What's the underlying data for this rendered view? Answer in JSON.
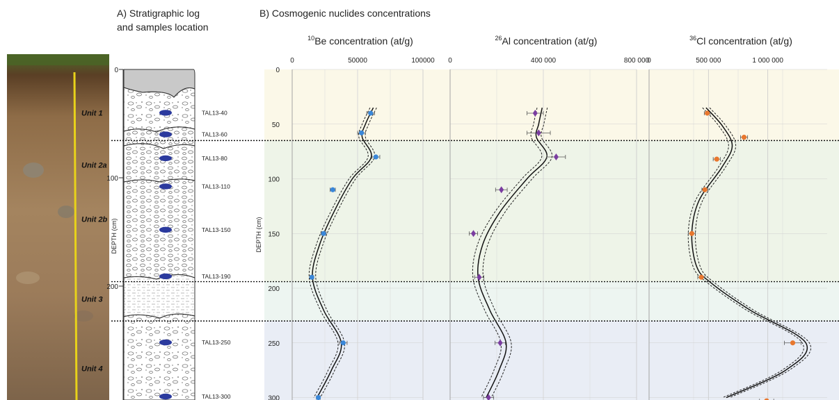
{
  "panel_a": {
    "title_line1": "A) Stratigraphic log",
    "title_line2": "and samples location",
    "axis_label": "DEPTH (cm)",
    "depth_ticks": [
      "0",
      "100",
      "200"
    ],
    "units": [
      {
        "label": "Unit 1",
        "depth": 40
      },
      {
        "label": "Unit 2a",
        "depth": 88
      },
      {
        "label": "Unit 2b",
        "depth": 138
      },
      {
        "label": "Unit 3",
        "depth": 212
      },
      {
        "label": "Unit 4",
        "depth": 276
      }
    ],
    "samples": [
      {
        "label": "TAL13-40",
        "depth": 40
      },
      {
        "label": "TAL13-60",
        "depth": 60
      },
      {
        "label": "TAL13-80",
        "depth": 82
      },
      {
        "label": "TAL13-110",
        "depth": 108
      },
      {
        "label": "TAL13-150",
        "depth": 148
      },
      {
        "label": "TAL13-190",
        "depth": 191
      },
      {
        "label": "TAL13-250",
        "depth": 252
      },
      {
        "label": "TAL13-300",
        "depth": 303
      }
    ],
    "photo_colors": {
      "top": "#6f5a3a",
      "mid": "#9a7a58",
      "low": "#8a6e52",
      "tape": "#e8d21a"
    },
    "diamict_fill": "#ffffff",
    "sample_color": "#2b3a9e"
  },
  "panel_b_title": "B) Cosmogenic nuclides concentrations",
  "zones": [
    {
      "from": 0,
      "to": 65,
      "color": "#fbf8e8"
    },
    {
      "from": 65,
      "to": 194,
      "color": "#eef4e8"
    },
    {
      "from": 194,
      "to": 230,
      "color": "#edf5f1"
    },
    {
      "from": 230,
      "to": 310,
      "color": "#e9edf5"
    }
  ],
  "boundaries": [
    65,
    194,
    230
  ],
  "chart_data": [
    {
      "type": "scatter",
      "title_sup": "10",
      "title_rest": "Be concentration (at/g)",
      "ylabel": "DEPTH (cm)",
      "xlim": [
        0,
        100000
      ],
      "ylim": [
        0,
        300
      ],
      "x_ticks": [
        {
          "v": 0,
          "label": "0"
        },
        {
          "v": 50000,
          "label": "50000"
        },
        {
          "v": 100000,
          "label": "100000"
        }
      ],
      "y_ticks": [
        {
          "v": 0,
          "label": "0"
        },
        {
          "v": 50,
          "label": "50"
        },
        {
          "v": 100,
          "label": "100"
        },
        {
          "v": 150,
          "label": "150"
        },
        {
          "v": 200,
          "label": "200"
        },
        {
          "v": 250,
          "label": "250"
        },
        {
          "v": 300,
          "label": "300"
        }
      ],
      "grid": true,
      "color": "#3a87d8",
      "marker": "circle",
      "points": [
        {
          "depth": 40,
          "value": 60000,
          "err": 3000
        },
        {
          "depth": 58,
          "value": 53000,
          "err": 3000
        },
        {
          "depth": 80,
          "value": 64000,
          "err": 3000
        },
        {
          "depth": 110,
          "value": 31000,
          "err": 2000
        },
        {
          "depth": 150,
          "value": 24000,
          "err": 2000
        },
        {
          "depth": 190,
          "value": 15000,
          "err": 1500
        },
        {
          "depth": 250,
          "value": 39000,
          "err": 3000
        },
        {
          "depth": 300,
          "value": 20000,
          "err": 1500
        }
      ],
      "curve": [
        {
          "depth": 35,
          "value": 62000
        },
        {
          "depth": 50,
          "value": 56000
        },
        {
          "depth": 62,
          "value": 53500
        },
        {
          "depth": 80,
          "value": 60500
        },
        {
          "depth": 100,
          "value": 46000
        },
        {
          "depth": 130,
          "value": 32000
        },
        {
          "depth": 160,
          "value": 21000
        },
        {
          "depth": 190,
          "value": 15500
        },
        {
          "depth": 220,
          "value": 24000
        },
        {
          "depth": 250,
          "value": 37500
        },
        {
          "depth": 275,
          "value": 30000
        },
        {
          "depth": 300,
          "value": 19000
        }
      ],
      "band": 2500
    },
    {
      "type": "scatter",
      "title_sup": "26",
      "title_rest": "Al concentration (at/g)",
      "xlim": [
        0,
        800000
      ],
      "ylim": [
        0,
        300
      ],
      "x_ticks": [
        {
          "v": 0,
          "label": "0"
        },
        {
          "v": 400000,
          "label": "400 000"
        },
        {
          "v": 800000,
          "label": "800 000"
        }
      ],
      "grid": true,
      "color": "#7a3da0",
      "marker": "diamond",
      "points": [
        {
          "depth": 40,
          "value": 365000,
          "err": 35000
        },
        {
          "depth": 58,
          "value": 380000,
          "err": 50000
        },
        {
          "depth": 80,
          "value": 455000,
          "err": 40000
        },
        {
          "depth": 110,
          "value": 220000,
          "err": 25000
        },
        {
          "depth": 150,
          "value": 100000,
          "err": 18000
        },
        {
          "depth": 190,
          "value": 125000,
          "err": 20000
        },
        {
          "depth": 250,
          "value": 215000,
          "err": 22000
        },
        {
          "depth": 300,
          "value": 165000,
          "err": 22000
        }
      ],
      "curve": [
        {
          "depth": 35,
          "value": 395000
        },
        {
          "depth": 50,
          "value": 380000
        },
        {
          "depth": 62,
          "value": 370000
        },
        {
          "depth": 80,
          "value": 415000
        },
        {
          "depth": 100,
          "value": 330000
        },
        {
          "depth": 130,
          "value": 215000
        },
        {
          "depth": 160,
          "value": 140000
        },
        {
          "depth": 190,
          "value": 120000
        },
        {
          "depth": 220,
          "value": 170000
        },
        {
          "depth": 250,
          "value": 240000
        },
        {
          "depth": 275,
          "value": 210000
        },
        {
          "depth": 300,
          "value": 155000
        }
      ],
      "band": 22000
    },
    {
      "type": "scatter",
      "title_sup": "36",
      "title_rest": "Cl concentration (at/g)",
      "xlim": [
        0,
        1500000
      ],
      "ylim": [
        0,
        300
      ],
      "x_ticks": [
        {
          "v": 0,
          "label": "0"
        },
        {
          "v": 500000,
          "label": "500 000"
        },
        {
          "v": 1000000,
          "label": "1 000 000"
        }
      ],
      "grid": true,
      "color": "#e8772e",
      "marker": "circle",
      "points": [
        {
          "depth": 40,
          "value": 490000,
          "err": 25000
        },
        {
          "depth": 62,
          "value": 800000,
          "err": 30000
        },
        {
          "depth": 82,
          "value": 570000,
          "err": 30000
        },
        {
          "depth": 110,
          "value": 470000,
          "err": 25000
        },
        {
          "depth": 150,
          "value": 360000,
          "err": 30000
        },
        {
          "depth": 190,
          "value": 440000,
          "err": 30000
        },
        {
          "depth": 250,
          "value": 1210000,
          "err": 70000
        },
        {
          "depth": 303,
          "value": 990000,
          "err": 60000
        }
      ],
      "curve": [
        {
          "depth": 35,
          "value": 480000
        },
        {
          "depth": 52,
          "value": 620000
        },
        {
          "depth": 70,
          "value": 700000
        },
        {
          "depth": 90,
          "value": 610000
        },
        {
          "depth": 120,
          "value": 420000
        },
        {
          "depth": 150,
          "value": 360000
        },
        {
          "depth": 180,
          "value": 400000
        },
        {
          "depth": 195,
          "value": 520000
        },
        {
          "depth": 220,
          "value": 850000
        },
        {
          "depth": 250,
          "value": 1320000
        },
        {
          "depth": 275,
          "value": 1150000
        },
        {
          "depth": 300,
          "value": 650000
        }
      ],
      "band": 30000
    }
  ]
}
